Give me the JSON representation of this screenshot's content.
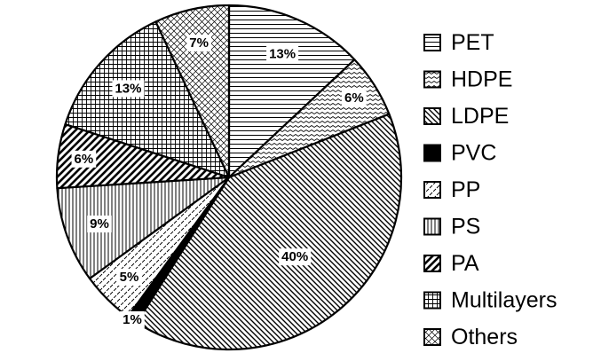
{
  "chart_data": {
    "type": "pie",
    "title": "",
    "legend_position": "right",
    "slices": [
      {
        "label": "PET",
        "value": 13,
        "data_label": "13%",
        "pattern": "horizontal-lines"
      },
      {
        "label": "HDPE",
        "value": 6,
        "data_label": "6%",
        "pattern": "zigzag"
      },
      {
        "label": "LDPE",
        "value": 40,
        "data_label": "40%",
        "pattern": "diagonal-back-dense"
      },
      {
        "label": "PVC",
        "value": 1,
        "data_label": "1%",
        "pattern": "solid-black"
      },
      {
        "label": "PP",
        "value": 5,
        "data_label": "5%",
        "pattern": "diagonal-dashed"
      },
      {
        "label": "PS",
        "value": 9,
        "data_label": "9%",
        "pattern": "vertical-lines"
      },
      {
        "label": "PA",
        "value": 6,
        "data_label": "6%",
        "pattern": "diagonal-forward-bold"
      },
      {
        "label": "Multilayers",
        "value": 13,
        "data_label": "13%",
        "pattern": "grid"
      },
      {
        "label": "Others",
        "value": 7,
        "data_label": "7%",
        "pattern": "crosshatch-diagonal"
      }
    ]
  }
}
